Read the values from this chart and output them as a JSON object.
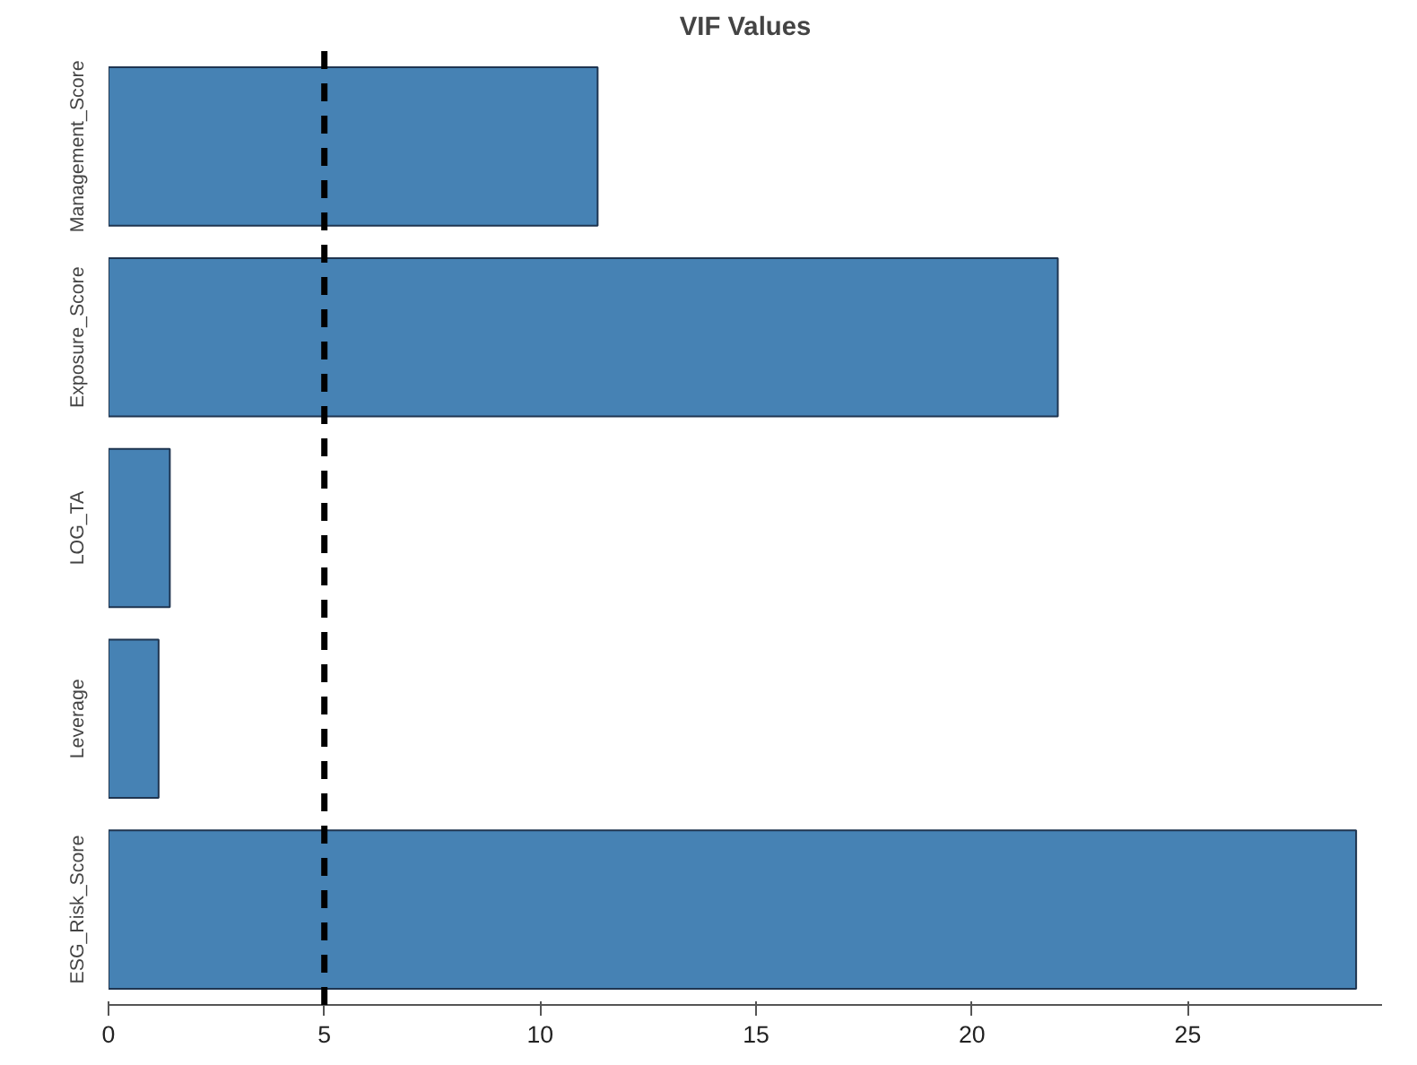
{
  "chart_data": {
    "type": "bar",
    "orientation": "horizontal",
    "title": "VIF Values",
    "categories": [
      "Management_Score",
      "Exposure_Score",
      "LOG_TA",
      "Leverage",
      "ESG_Risk_Score"
    ],
    "values": [
      11.33,
      21.99,
      1.42,
      1.16,
      28.9
    ],
    "color": "#4682b4",
    "xlim": [
      0,
      29.5
    ],
    "xticks": [
      0,
      5,
      10,
      15,
      20,
      25
    ],
    "grid": false,
    "ref_lines": [
      {
        "axis": "x",
        "value": 5,
        "color": "#000000",
        "line_style": "dashed"
      }
    ]
  }
}
